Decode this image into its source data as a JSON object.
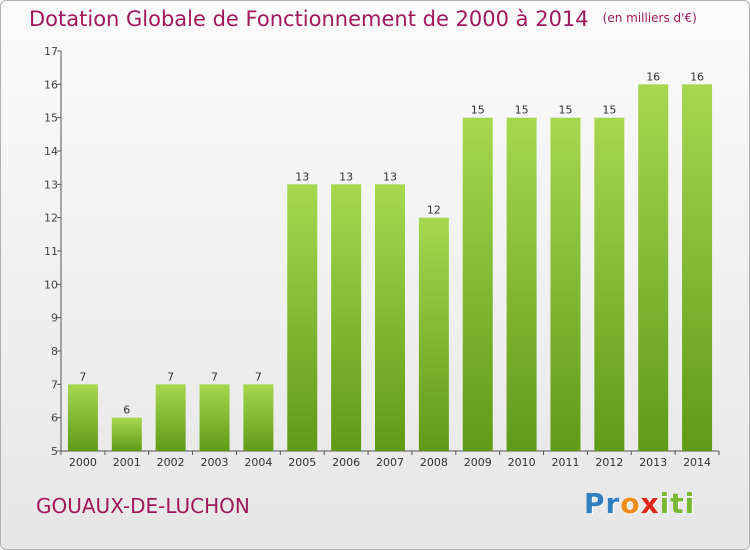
{
  "title": "Dotation Globale de Fonctionnement de 2000 à 2014",
  "unit_note": "(en milliers d'€)",
  "city": "GOUAUX-DE-LUCHON",
  "logo": {
    "text": "Proxiti",
    "letters": [
      "P",
      "r",
      "o",
      "x",
      "i",
      "t",
      "i"
    ],
    "colors": [
      "#2f7fc1",
      "#2f7fc1",
      "#f28c1a",
      "#e0271a",
      "#7ab833",
      "#7ab833",
      "#7ab833"
    ]
  },
  "colors": {
    "title": "#a0185a",
    "bar_top": "#a6d84f",
    "bar_bottom": "#5f9a17",
    "axis": "#555555"
  },
  "chart_data": {
    "type": "bar",
    "categories": [
      "2000",
      "2001",
      "2002",
      "2003",
      "2004",
      "2005",
      "2006",
      "2007",
      "2008",
      "2009",
      "2010",
      "2011",
      "2012",
      "2013",
      "2014"
    ],
    "values": [
      7,
      6,
      7,
      7,
      7,
      13,
      13,
      13,
      12,
      15,
      15,
      15,
      15,
      16,
      16
    ],
    "data_labels": [
      "7",
      "6",
      "7",
      "7",
      "7",
      "13",
      "13",
      "13",
      "12",
      "15",
      "15",
      "15",
      "15",
      "16",
      "16"
    ],
    "title": "Dotation Globale de Fonctionnement de 2000 à 2014",
    "xlabel": "",
    "ylabel": "",
    "ylim": [
      5,
      17
    ],
    "yticks": [
      "5",
      "6",
      "7",
      "8",
      "9",
      "10",
      "11",
      "12",
      "13",
      "14",
      "15",
      "16",
      "17"
    ],
    "grid": false,
    "legend": "none"
  }
}
